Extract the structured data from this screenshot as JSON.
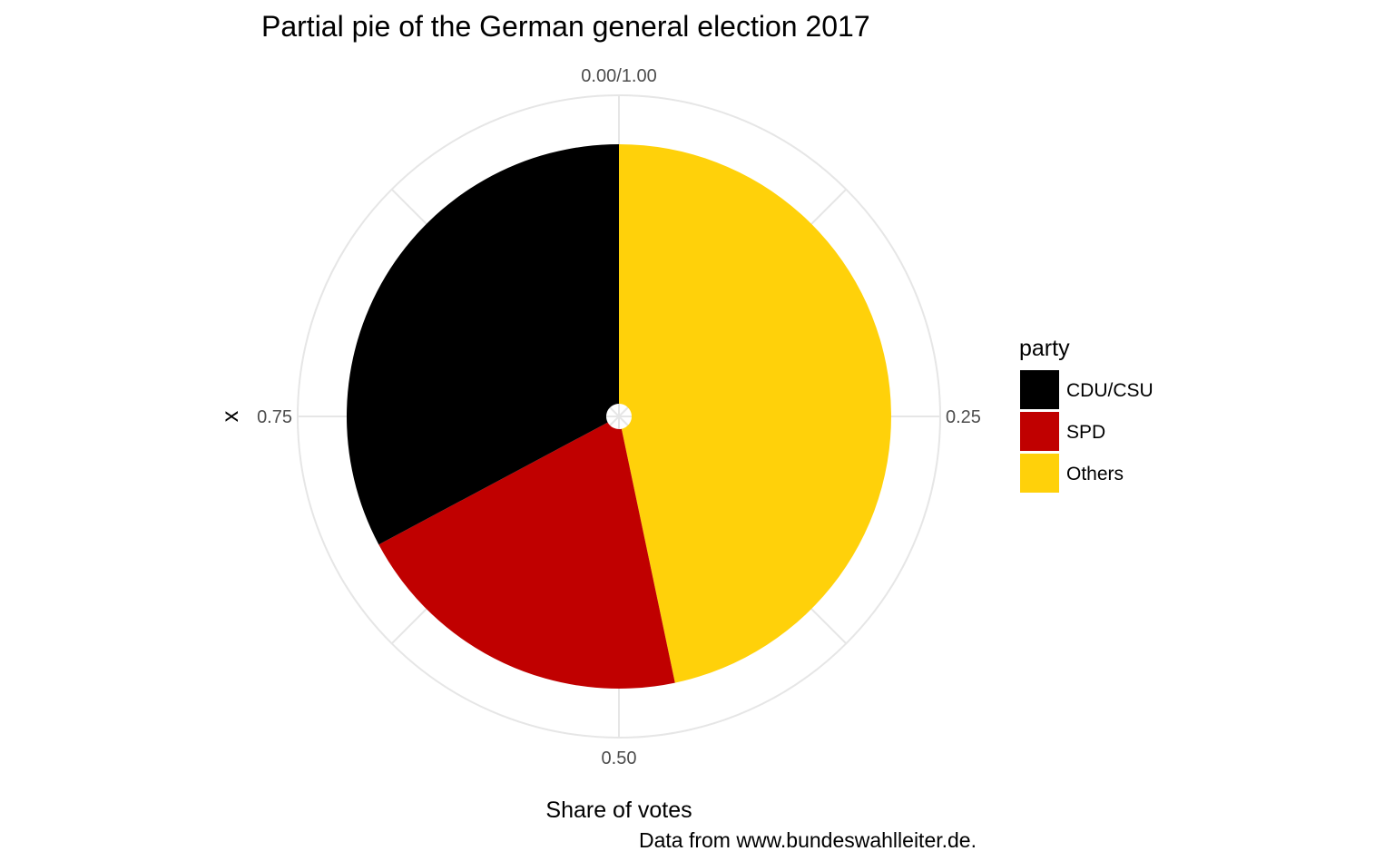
{
  "chart_data": {
    "type": "pie",
    "title": "Partial pie of the German general election 2017",
    "xlabel": "Share of votes",
    "ylabel": "x",
    "caption": "Data from www.bundeswahlleiter.de.",
    "theta_ticks": [
      {
        "value": 0.0,
        "label": "0.00/1.00"
      },
      {
        "value": 0.25,
        "label": "0.25"
      },
      {
        "value": 0.5,
        "label": "0.50"
      },
      {
        "value": 0.75,
        "label": "0.75"
      }
    ],
    "slices": [
      {
        "name": "Others",
        "start": 0.0,
        "end": 0.467,
        "color": "#ffd10a"
      },
      {
        "name": "SPD",
        "start": 0.467,
        "end": 0.672,
        "color": "#c00000"
      },
      {
        "name": "CDU/CSU",
        "start": 0.672,
        "end": 1.0,
        "color": "#000000"
      }
    ],
    "legend": {
      "title": "party",
      "position": "right",
      "items": [
        {
          "label": "CDU/CSU",
          "color": "#000000"
        },
        {
          "label": "SPD",
          "color": "#c00000"
        },
        {
          "label": "Others",
          "color": "#ffd10a"
        }
      ]
    },
    "grid": true,
    "colors": {
      "grid": "#e6e6e6",
      "background": "#ffffff"
    }
  }
}
